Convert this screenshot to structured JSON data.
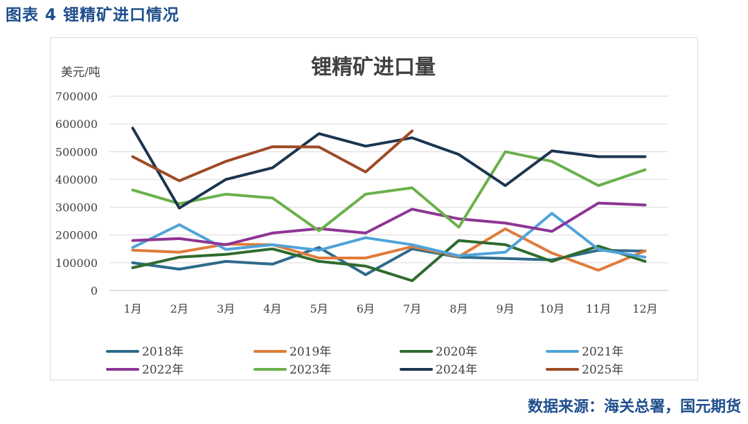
{
  "figure_title": "图表 4 锂精矿进口情况",
  "source": "数据来源：海关总署，国元期货",
  "chart_data": {
    "type": "line",
    "title": "锂精矿进口量",
    "ylabel": "美元/吨",
    "xlabel": "",
    "ylim": [
      0,
      700000
    ],
    "yticks": [
      0,
      100000,
      200000,
      300000,
      400000,
      500000,
      600000,
      700000
    ],
    "ytick_labels": [
      "0",
      "100000",
      "200000",
      "300000",
      "400000",
      "500000",
      "600000",
      "700000"
    ],
    "grid": true,
    "legend_position": "bottom",
    "categories": [
      "1月",
      "2月",
      "3月",
      "4月",
      "5月",
      "6月",
      "7月",
      "8月",
      "9月",
      "10月",
      "11月",
      "12月"
    ],
    "series": [
      {
        "name": "2018年",
        "color": "#2e6a8c",
        "values": [
          100000,
          77000,
          105000,
          95000,
          155000,
          57000,
          150000,
          120000,
          115000,
          110000,
          145000,
          142000
        ]
      },
      {
        "name": "2019年",
        "color": "#e07b3a",
        "values": [
          145000,
          138000,
          167000,
          165000,
          117000,
          117000,
          158000,
          122000,
          222000,
          135000,
          73000,
          143000
        ]
      },
      {
        "name": "2020年",
        "color": "#2e6b2e",
        "values": [
          82000,
          120000,
          130000,
          150000,
          105000,
          88000,
          35000,
          180000,
          165000,
          105000,
          160000,
          105000
        ]
      },
      {
        "name": "2021年",
        "color": "#4fa3d9",
        "values": [
          155000,
          237000,
          148000,
          165000,
          145000,
          190000,
          165000,
          125000,
          138000,
          278000,
          148000,
          120000
        ]
      },
      {
        "name": "2022年",
        "color": "#8e3594",
        "values": [
          180000,
          187000,
          165000,
          207000,
          223000,
          207000,
          293000,
          258000,
          243000,
          213000,
          315000,
          308000
        ]
      },
      {
        "name": "2023年",
        "color": "#6ab04c",
        "values": [
          362000,
          313000,
          347000,
          333000,
          215000,
          347000,
          370000,
          228000,
          500000,
          465000,
          378000,
          435000
        ]
      },
      {
        "name": "2024年",
        "color": "#1c3550",
        "values": [
          585000,
          297000,
          400000,
          442000,
          565000,
          520000,
          550000,
          490000,
          378000,
          503000,
          482000,
          482000
        ]
      },
      {
        "name": "2025年",
        "color": "#9e4a25",
        "values": [
          482000,
          395000,
          465000,
          518000,
          517000,
          427000,
          575000,
          null,
          null,
          null,
          null,
          null
        ]
      }
    ]
  }
}
